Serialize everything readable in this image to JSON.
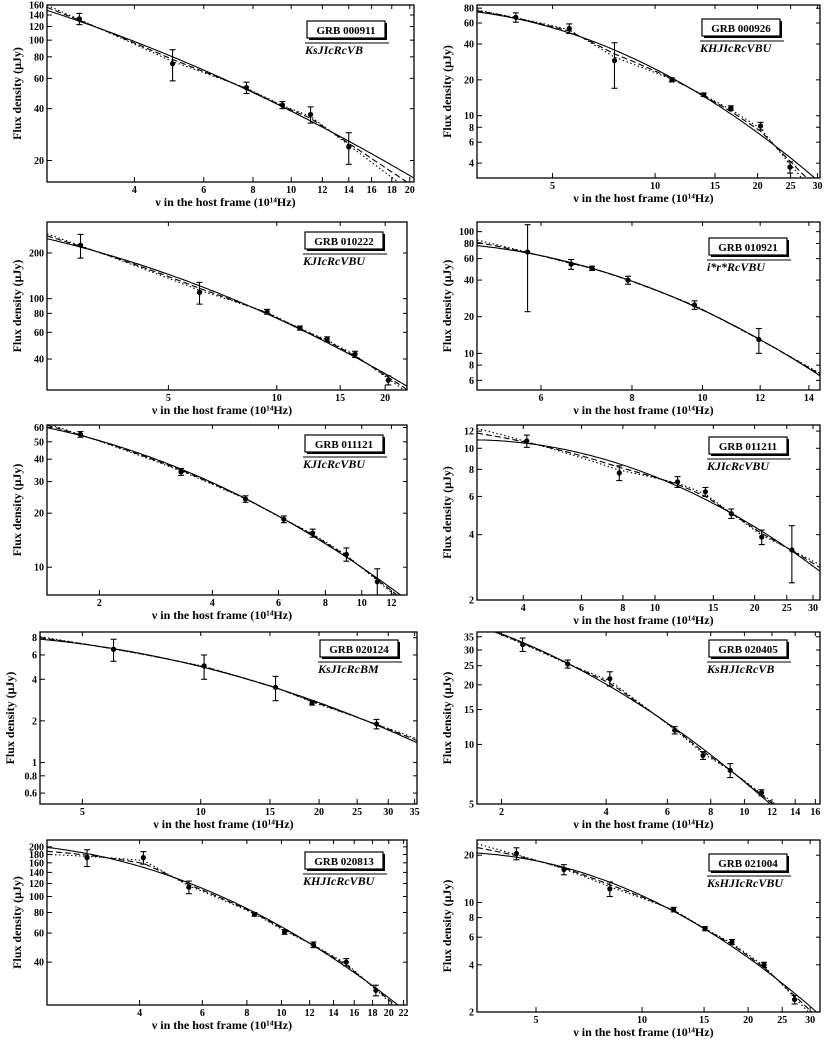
{
  "figure": {
    "xlabel": "ν in the host frame (10¹⁴Hz)",
    "ylabel": "Flux density (μJy)",
    "legend": "none; panels carry a boxed GRB name and filter list in the top-right",
    "line_styles": [
      "solid",
      "dashed",
      "dotted"
    ],
    "axes": "log-log"
  },
  "chart_data": [
    {
      "type": "scatter",
      "panel": "GRB 000911",
      "title": "GRB 000911",
      "filters": "KsJIcRcVB",
      "xlabel": "ν in the host frame (10¹⁴Hz)",
      "ylabel": "Flux density (μJy)",
      "xlim": [
        2.4,
        20.5
      ],
      "ylim": [
        15,
        160
      ],
      "xscale": "log",
      "yscale": "log",
      "xticks": [
        "4",
        "6",
        "8",
        "10",
        "12",
        "14",
        "16",
        "18",
        "20"
      ],
      "yticks": [
        "20",
        "40",
        "60",
        "80",
        "100",
        "120",
        "140",
        "160"
      ],
      "x": [
        2.9,
        5.0,
        7.7,
        9.5,
        11.2,
        14.0
      ],
      "y": [
        133,
        73,
        53,
        42,
        37,
        24
      ],
      "yerr": [
        10,
        15,
        4,
        2,
        4,
        5
      ]
    },
    {
      "type": "scatter",
      "panel": "GRB 000926",
      "title": "GRB 000926",
      "filters": "KHJIcRcVBU",
      "xlabel": "ν in the host frame (10¹⁴Hz)",
      "ylabel": "Flux density (μJy)",
      "xlim": [
        3.0,
        30.5
      ],
      "ylim": [
        3,
        85
      ],
      "xscale": "log",
      "yscale": "log",
      "xticks": [
        "5",
        "10",
        "15",
        "20",
        "25",
        "30"
      ],
      "yticks": [
        "4",
        "6",
        "8",
        "10",
        "20",
        "40",
        "60",
        "80"
      ],
      "x": [
        3.9,
        5.6,
        7.6,
        11.2,
        13.9,
        16.7,
        20.4,
        24.9
      ],
      "y": [
        67,
        54,
        29,
        20,
        15,
        11.6,
        8.2,
        3.7
      ],
      "yerr": [
        6,
        5,
        12,
        0.8,
        0.5,
        0.5,
        0.6,
        0.4
      ]
    },
    {
      "type": "scatter",
      "panel": "GRB 010222",
      "title": "GRB 010222",
      "filters": "KJIcRcVBU",
      "xlabel": "ν in the host frame (10¹⁴Hz)",
      "ylabel": "Flux density (μJy)",
      "xlim": [
        2.3,
        23
      ],
      "ylim": [
        25,
        320
      ],
      "xscale": "log",
      "yscale": "log",
      "xticks": [
        "5",
        "10",
        "15",
        "20"
      ],
      "yticks": [
        "40",
        "60",
        "80",
        "100",
        "200"
      ],
      "x": [
        2.85,
        6.1,
        9.4,
        11.6,
        13.8,
        16.5,
        20.4
      ],
      "y": [
        225,
        110,
        82,
        64,
        54,
        43,
        29
      ],
      "yerr": [
        40,
        18,
        3,
        2,
        2,
        2,
        2
      ]
    },
    {
      "type": "scatter",
      "panel": "GRB 010921",
      "title": "GRB 010921",
      "filters": "i*r*RcVBU",
      "xlabel": "ν in the host frame (10¹⁴Hz)",
      "ylabel": "Flux density (μJy)",
      "xlim": [
        4.9,
        14.5
      ],
      "ylim": [
        5,
        120
      ],
      "xscale": "log",
      "yscale": "log",
      "xticks": [
        "6",
        "8",
        "10",
        "12",
        "14"
      ],
      "yticks": [
        "6",
        "8",
        "10",
        "20",
        "40",
        "60",
        "80",
        "100"
      ],
      "x": [
        5.75,
        6.6,
        7.05,
        7.9,
        9.75,
        11.95
      ],
      "y": [
        68,
        54,
        50,
        40,
        25,
        13
      ],
      "yerr": [
        46,
        5,
        2,
        3,
        2,
        3
      ]
    },
    {
      "type": "scatter",
      "panel": "GRB 011121",
      "title": "GRB 011121",
      "filters": "KJIcRcVBU",
      "xlabel": "ν in the host frame (10¹⁴Hz)",
      "ylabel": "Flux density (μJy)",
      "xlim": [
        1.45,
        13.2
      ],
      "ylim": [
        7,
        62
      ],
      "xscale": "log",
      "yscale": "log",
      "xticks": [
        "2",
        "4",
        "6",
        "8",
        "10",
        "12"
      ],
      "yticks": [
        "10",
        "20",
        "30",
        "40",
        "50",
        "60"
      ],
      "x": [
        1.78,
        3.3,
        4.9,
        6.2,
        7.4,
        9.1,
        11.0
      ],
      "y": [
        55,
        34,
        24,
        18.5,
        15.5,
        11.8,
        8.3
      ],
      "yerr": [
        2,
        1.5,
        1,
        0.8,
        0.8,
        1,
        1.5
      ]
    },
    {
      "type": "scatter",
      "panel": "GRB 011211",
      "title": "GRB 011211",
      "filters": "KJIcRcVBU",
      "xlabel": "ν in the host frame (10¹⁴Hz)",
      "ylabel": "Flux density (μJy)",
      "xlim": [
        2.9,
        31.5
      ],
      "ylim": [
        2,
        12.8
      ],
      "xscale": "log",
      "yscale": "log",
      "xticks": [
        "4",
        "6",
        "8",
        "10",
        "15",
        "20",
        "25",
        "30"
      ],
      "yticks": [
        "2",
        "4",
        "6",
        "8",
        "10",
        "12"
      ],
      "x": [
        4.1,
        7.8,
        11.7,
        14.2,
        17.0,
        21.0,
        25.9
      ],
      "y": [
        10.8,
        7.7,
        7.0,
        6.3,
        5.0,
        3.9,
        3.4
      ],
      "yerr": [
        0.7,
        0.6,
        0.4,
        0.3,
        0.25,
        0.3,
        1.0
      ]
    },
    {
      "type": "scatter",
      "panel": "GRB 020124",
      "title": "GRB 020124",
      "filters": "KsJIcRcBM",
      "xlabel": "ν in the host frame (10¹⁴Hz)",
      "ylabel": "Flux density (μJy)",
      "xlim": [
        3.9,
        35.5
      ],
      "ylim": [
        0.5,
        8.8
      ],
      "xscale": "log",
      "yscale": "log",
      "xticks": [
        "5",
        "10",
        "15",
        "20",
        "25",
        "30",
        "35"
      ],
      "yticks": [
        "0.6",
        "0.8",
        "1",
        "2",
        "4",
        "6",
        "8"
      ],
      "x": [
        6.0,
        10.2,
        15.5,
        19.2,
        28.0
      ],
      "y": [
        6.6,
        5.0,
        3.5,
        2.7,
        1.9
      ],
      "yerr": [
        1.2,
        1.0,
        0.7,
        0.1,
        0.15
      ]
    },
    {
      "type": "scatter",
      "panel": "GRB 020405",
      "title": "GRB 020405",
      "filters": "KsHJIcRcVB",
      "xlabel": "ν in the host frame (10¹⁴Hz)",
      "ylabel": "Flux density (μJy)",
      "xlim": [
        1.7,
        16.5
      ],
      "ylim": [
        5,
        37
      ],
      "xscale": "log",
      "yscale": "log",
      "xticks": [
        "2",
        "4",
        "6",
        "8",
        "10",
        "12",
        "14",
        "16"
      ],
      "yticks": [
        "5",
        "10",
        "15",
        "20",
        "25",
        "30",
        "35"
      ],
      "x": [
        2.3,
        3.1,
        4.1,
        6.3,
        7.6,
        9.1,
        11.2
      ],
      "y": [
        32,
        25.5,
        21.5,
        11.8,
        8.8,
        7.4,
        5.7
      ],
      "yerr": [
        2.5,
        1.2,
        1.8,
        0.5,
        0.4,
        0.6,
        0.2
      ]
    },
    {
      "type": "scatter",
      "panel": "GRB 020813",
      "title": "GRB 020813",
      "filters": "KHJIcRcVBU",
      "xlabel": "ν in the host frame (10¹⁴Hz)",
      "ylabel": "Flux density (μJy)",
      "xlim": [
        2.2,
        22.5
      ],
      "ylim": [
        22,
        220
      ],
      "xscale": "log",
      "yscale": "log",
      "xticks": [
        "4",
        "6",
        "8",
        "10",
        "12",
        "14",
        "16",
        "18",
        "20",
        "22"
      ],
      "yticks": [
        "40",
        "60",
        "80",
        "100",
        "120",
        "140",
        "160",
        "180",
        "200"
      ],
      "x": [
        2.85,
        4.1,
        5.5,
        8.4,
        10.2,
        12.3,
        15.2,
        18.4
      ],
      "y": [
        172,
        172,
        114,
        78,
        61,
        51,
        40,
        27
      ],
      "yerr": [
        20,
        15,
        10,
        2,
        2,
        2,
        2,
        2
      ]
    },
    {
      "type": "scatter",
      "panel": "GRB 021004",
      "title": "GRB 021004",
      "filters": "KsHJIcRcVBU",
      "xlabel": "ν in the host frame (10¹⁴Hz)",
      "ylabel": "Flux density (μJy)",
      "xlim": [
        3.4,
        32
      ],
      "ylim": [
        2,
        25
      ],
      "xscale": "log",
      "yscale": "log",
      "xticks": [
        "5",
        "10",
        "15",
        "20",
        "25",
        "30"
      ],
      "yticks": [
        "2",
        "4",
        "6",
        "8",
        "10",
        "20"
      ],
      "x": [
        4.4,
        6.0,
        8.1,
        12.3,
        15.1,
        18.0,
        22.2,
        27.1
      ],
      "y": [
        20.5,
        16.2,
        12.2,
        9.0,
        6.8,
        5.6,
        4.0,
        2.4
      ],
      "yerr": [
        1.8,
        1.2,
        1.3,
        0.3,
        0.2,
        0.2,
        0.15,
        0.15
      ]
    }
  ]
}
